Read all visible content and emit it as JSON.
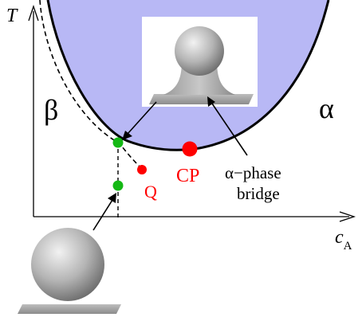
{
  "axes": {
    "y_label": "T",
    "x_label_main": "c",
    "x_label_sub": "A"
  },
  "phases": {
    "left": "β",
    "right": "α"
  },
  "points": {
    "critical": "CP",
    "other": "Q"
  },
  "annotation": {
    "line1": "α−phase",
    "line2": "bridge"
  },
  "colors": {
    "alpha_region": "#b8b8f5",
    "critical_point": "#ff0000",
    "green_points": "#14b814",
    "label_red": "#ff0000"
  }
}
